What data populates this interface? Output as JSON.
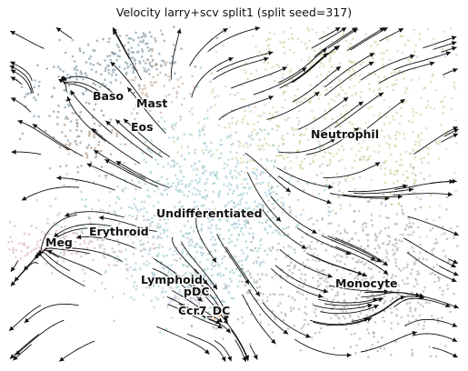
{
  "chart_data": {
    "type": "scatter",
    "title": "Velocity larry+scv split1 (split seed=317)",
    "xlabel": "",
    "ylabel": "",
    "grid": false,
    "legend": "on-data labels",
    "overlay": "velocity streamlines",
    "clusters": [
      {
        "name": "Baso",
        "color": "#5f7f93"
      },
      {
        "name": "Mast",
        "color": "#b79c86"
      },
      {
        "name": "Eos",
        "color": "#9a7a5f"
      },
      {
        "name": "Neutrophil",
        "color": "#c9c98f"
      },
      {
        "name": "Undifferentiated",
        "color": "#8cc2c9"
      },
      {
        "name": "Erythroid",
        "color": "#b7a9b5"
      },
      {
        "name": "Meg",
        "color": "#d8a7bd"
      },
      {
        "name": "Lymphoid",
        "color": "#a7c4cf"
      },
      {
        "name": "pDC",
        "color": "#c9b6d6"
      },
      {
        "name": "Ccr7_DC",
        "color": "#e8a070"
      },
      {
        "name": "Monocyte",
        "color": "#9d9d9d"
      }
    ]
  }
}
